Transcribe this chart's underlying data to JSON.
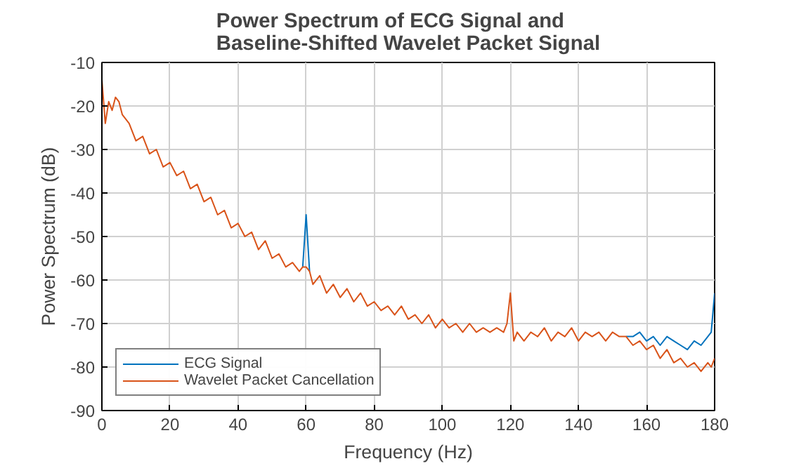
{
  "chart_data": {
    "type": "line",
    "title": "Power Spectrum of ECG Signal and Baseline-Shifted Wavelet Packet Signal",
    "xlabel": "Frequency (Hz)",
    "ylabel": "Power Spectrum (dB)",
    "x": [
      0,
      1,
      2,
      3,
      4,
      5,
      6,
      8,
      10,
      12,
      14,
      16,
      18,
      20,
      22,
      24,
      26,
      28,
      30,
      32,
      34,
      36,
      38,
      40,
      42,
      44,
      46,
      48,
      50,
      52,
      54,
      56,
      58,
      59,
      60,
      61,
      62,
      64,
      66,
      68,
      70,
      72,
      74,
      76,
      78,
      80,
      82,
      84,
      86,
      88,
      90,
      92,
      94,
      96,
      98,
      100,
      102,
      104,
      106,
      108,
      110,
      112,
      114,
      116,
      118,
      119,
      120,
      121,
      122,
      124,
      126,
      128,
      130,
      132,
      134,
      136,
      138,
      140,
      142,
      144,
      146,
      148,
      150,
      152,
      154,
      156,
      158,
      160,
      162,
      164,
      166,
      168,
      170,
      172,
      174,
      176,
      178,
      179,
      180
    ],
    "series": [
      {
        "name": "ECG Signal",
        "color": "#0072bd",
        "values": [
          null,
          null,
          null,
          null,
          null,
          null,
          null,
          null,
          null,
          null,
          null,
          null,
          null,
          null,
          null,
          null,
          null,
          null,
          null,
          null,
          null,
          null,
          null,
          null,
          null,
          null,
          null,
          null,
          null,
          null,
          null,
          null,
          null,
          -57,
          -45,
          -58,
          null,
          null,
          null,
          null,
          null,
          null,
          null,
          null,
          null,
          null,
          null,
          null,
          null,
          null,
          null,
          null,
          null,
          null,
          null,
          null,
          null,
          null,
          null,
          null,
          null,
          null,
          null,
          null,
          null,
          null,
          null,
          null,
          null,
          null,
          null,
          null,
          null,
          null,
          null,
          null,
          null,
          null,
          null,
          null,
          null,
          null,
          null,
          null,
          -73,
          -73,
          -72,
          -74,
          -73,
          -75,
          -73,
          -74,
          -75,
          -76,
          -74,
          -75,
          -73,
          -72,
          -63
        ]
      },
      {
        "name": "Wavelet Packet Cancellation",
        "color": "#d95319",
        "values": [
          -14,
          -24,
          -19,
          -21,
          -18,
          -19,
          -22,
          -24,
          -28,
          -27,
          -31,
          -30,
          -34,
          -33,
          -36,
          -35,
          -39,
          -38,
          -42,
          -41,
          -45,
          -44,
          -48,
          -47,
          -50,
          -49,
          -53,
          -51,
          -55,
          -54,
          -57,
          -56,
          -58,
          -57,
          -57,
          -58,
          -61,
          -59,
          -63,
          -61,
          -64,
          -62,
          -65,
          -63,
          -66,
          -65,
          -67,
          -66,
          -68,
          -66,
          -69,
          -68,
          -70,
          -68,
          -71,
          -69,
          -71,
          -70,
          -72,
          -70,
          -72,
          -71,
          -72,
          -71,
          -72,
          -70,
          -63,
          -74,
          -72,
          -74,
          -72,
          -73,
          -71,
          -74,
          -72,
          -73,
          -71,
          -74,
          -72,
          -73,
          -72,
          -74,
          -72,
          -73,
          -73,
          -75,
          -74,
          -76,
          -75,
          -78,
          -76,
          -79,
          -78,
          -80,
          -79,
          -81,
          -79,
          -80,
          -78
        ]
      }
    ],
    "xlim": [
      0,
      180
    ],
    "xticks": [
      0,
      20,
      40,
      60,
      80,
      100,
      120,
      140,
      160,
      180
    ],
    "ylim": [
      -90,
      -10
    ],
    "yticks": [
      -90,
      -80,
      -70,
      -60,
      -50,
      -40,
      -30,
      -20,
      -10
    ],
    "grid": true,
    "legend": "bottom left",
    "line_style": "solid",
    "marker": "none"
  }
}
